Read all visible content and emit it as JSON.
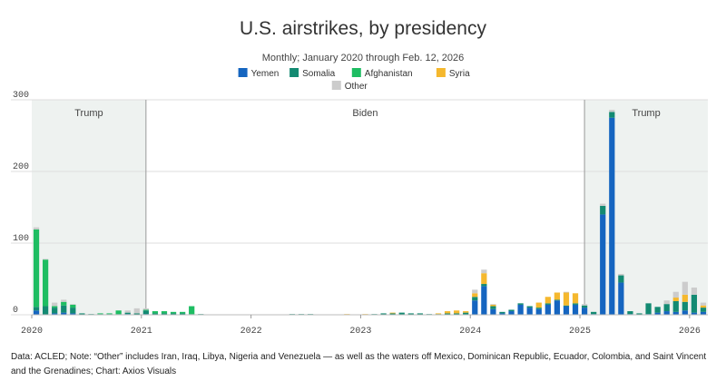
{
  "chart_data": {
    "type": "bar",
    "stacked": true,
    "title": "U.S. airstrikes, by presidency",
    "subtitle": "Monthly; January 2020 through Feb. 12, 2026",
    "ylim": [
      0,
      300
    ],
    "yticks": [
      0,
      100,
      200,
      300
    ],
    "xticks": [
      {
        "label": "2020",
        "month_index": 0
      },
      {
        "label": "2021",
        "month_index": 12
      },
      {
        "label": "2022",
        "month_index": 24
      },
      {
        "label": "2023",
        "month_index": 36
      },
      {
        "label": "2024",
        "month_index": 48
      },
      {
        "label": "2025",
        "month_index": 60
      },
      {
        "label": "2026",
        "month_index": 72
      }
    ],
    "eras": [
      {
        "label": "Trump",
        "start": 0,
        "end": 12.5,
        "shaded": true
      },
      {
        "label": "Biden",
        "start": 12.5,
        "end": 60.5,
        "shaded": false
      },
      {
        "label": "Trump",
        "start": 60.5,
        "end": 74,
        "shaded": true
      }
    ],
    "months": 74,
    "series": [
      {
        "name": "Yemen",
        "color": "#1565c0",
        "values": [
          6,
          0,
          2,
          3,
          2,
          0,
          0,
          0,
          0,
          0,
          1,
          0,
          1,
          0,
          0,
          0,
          0,
          0,
          0,
          0,
          0,
          0,
          0,
          0,
          0,
          0,
          0,
          0,
          0,
          0,
          0,
          0,
          0,
          0,
          0,
          0,
          0,
          0,
          0,
          0,
          0,
          0,
          0,
          0,
          0,
          0,
          0,
          0,
          20,
          40,
          8,
          2,
          5,
          14,
          10,
          8,
          14,
          20,
          12,
          14,
          10,
          1,
          140,
          275,
          45,
          1,
          0,
          1,
          3,
          5,
          4,
          6,
          3,
          4
        ]
      },
      {
        "name": "Somalia",
        "color": "#138a72",
        "values": [
          5,
          12,
          8,
          10,
          8,
          2,
          1,
          1,
          1,
          1,
          2,
          2,
          5,
          2,
          2,
          2,
          2,
          1,
          1,
          0,
          0,
          0,
          0,
          0,
          0,
          0,
          0,
          0,
          1,
          1,
          1,
          0,
          0,
          0,
          0,
          0,
          0,
          1,
          2,
          2,
          3,
          2,
          2,
          1,
          1,
          2,
          2,
          3,
          5,
          3,
          4,
          2,
          2,
          2,
          2,
          2,
          2,
          1,
          1,
          2,
          3,
          3,
          12,
          8,
          10,
          4,
          2,
          15,
          8,
          10,
          15,
          12,
          25,
          6
        ]
      },
      {
        "name": "Afghanistan",
        "color": "#1ebd62",
        "values": [
          108,
          65,
          2,
          5,
          4,
          0,
          0,
          1,
          1,
          5,
          0,
          0,
          1,
          3,
          3,
          2,
          2,
          11,
          0,
          0,
          0,
          0,
          0,
          0,
          0,
          0,
          0,
          0,
          0,
          0,
          0,
          0,
          0,
          0,
          0,
          0,
          0,
          0,
          0,
          0,
          0,
          0,
          0,
          0,
          0,
          0,
          0,
          0,
          0,
          0,
          0,
          0,
          0,
          0,
          0,
          0,
          0,
          0,
          0,
          0,
          0,
          0,
          0,
          0,
          0,
          0,
          0,
          0,
          0,
          0,
          0,
          0,
          0,
          0
        ]
      },
      {
        "name": "Syria",
        "color": "#f5b82e",
        "values": [
          0,
          0,
          0,
          0,
          0,
          0,
          0,
          0,
          0,
          0,
          0,
          0,
          0,
          0,
          0,
          0,
          0,
          0,
          0,
          0,
          0,
          0,
          0,
          0,
          0,
          0,
          0,
          0,
          0,
          0,
          0,
          0,
          0,
          0,
          1,
          0,
          1,
          0,
          0,
          1,
          0,
          0,
          0,
          0,
          1,
          3,
          4,
          2,
          5,
          15,
          2,
          0,
          0,
          0,
          0,
          7,
          9,
          10,
          18,
          14,
          0,
          0,
          0,
          0,
          0,
          0,
          0,
          0,
          0,
          0,
          5,
          10,
          0,
          3
        ]
      },
      {
        "name": "Other",
        "color": "#cccccc",
        "values": [
          3,
          1,
          5,
          3,
          1,
          0,
          0,
          0,
          0,
          0,
          3,
          7,
          2,
          0,
          0,
          0,
          0,
          0,
          0,
          0,
          0,
          0,
          0,
          0,
          0,
          0,
          0,
          0,
          0,
          0,
          0,
          0,
          0,
          0,
          0,
          0,
          0,
          0,
          0,
          0,
          0,
          0,
          0,
          0,
          0,
          0,
          0,
          0,
          5,
          5,
          1,
          0,
          0,
          0,
          0,
          0,
          0,
          0,
          1,
          0,
          2,
          0,
          3,
          3,
          2,
          0,
          0,
          0,
          0,
          5,
          8,
          18,
          10,
          4
        ]
      }
    ]
  },
  "footer": {
    "note": "Data: ACLED; Note: “Other” includes Iran, Iraq, Libya, Nigeria and Venezuela — as well as the waters off Mexico, Dominican Republic, Ecuador, Colombia, and Saint Vincent and the Grenadines; Chart: Axios Visuals"
  }
}
